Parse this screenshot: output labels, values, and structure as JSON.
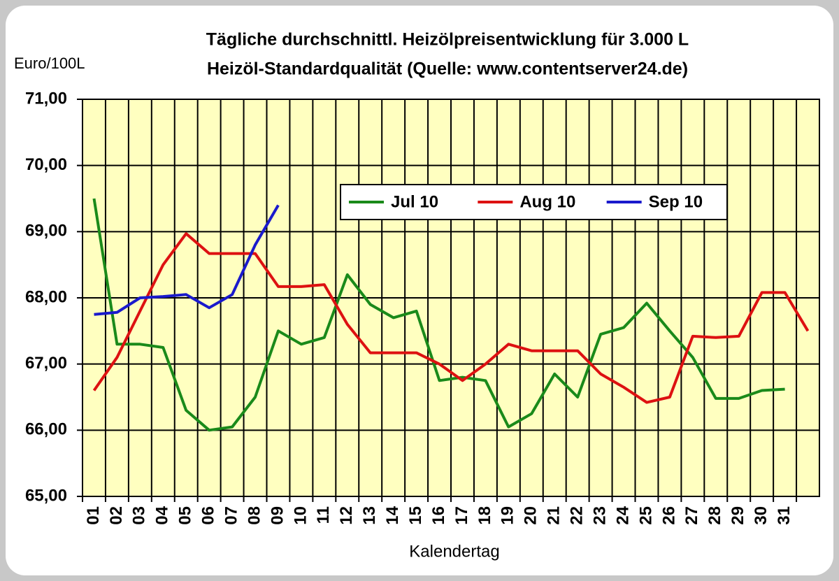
{
  "chart_data": {
    "type": "line",
    "title": "Tägliche durchschnittl. Heizölpreisentwicklung für 3.000 L",
    "subtitle": "Heizöl-Standardqualität (Quelle: www.contentserver24.de)",
    "y_label": "Euro/100L",
    "x_label": "Kalendertag",
    "categories": [
      "01",
      "02",
      "03",
      "04",
      "05",
      "06",
      "07",
      "08",
      "09",
      "10",
      "11",
      "12",
      "13",
      "14",
      "15",
      "16",
      "17",
      "18",
      "19",
      "20",
      "21",
      "22",
      "23",
      "24",
      "25",
      "26",
      "27",
      "28",
      "29",
      "30",
      "31",
      null
    ],
    "series": [
      {
        "name": "Jul 10",
        "color": "#1a8a1a",
        "values": [
          69.5,
          67.3,
          67.3,
          67.25,
          66.3,
          66.0,
          66.05,
          66.5,
          67.5,
          67.3,
          67.4,
          68.35,
          67.9,
          67.7,
          67.8,
          66.75,
          66.8,
          66.75,
          66.05,
          66.25,
          66.85,
          66.5,
          67.45,
          67.55,
          67.92,
          67.5,
          67.1,
          66.48,
          66.48,
          66.6,
          66.62,
          null
        ]
      },
      {
        "name": "Aug 10",
        "color": "#dd1111",
        "values": [
          66.6,
          67.1,
          67.8,
          68.5,
          68.97,
          68.67,
          68.67,
          68.67,
          68.17,
          68.17,
          68.2,
          67.6,
          67.17,
          67.17,
          67.17,
          67.0,
          66.75,
          67.0,
          67.3,
          67.2,
          67.2,
          67.2,
          66.85,
          66.65,
          66.42,
          66.5,
          67.42,
          67.4,
          67.42,
          68.08,
          68.08,
          67.5
        ]
      },
      {
        "name": "Sep 10",
        "color": "#1a1acc",
        "values": [
          67.75,
          67.78,
          68.0,
          68.02,
          68.05,
          67.85,
          68.05,
          68.8,
          69.4,
          null,
          null,
          null,
          null,
          null,
          null,
          null,
          null,
          null,
          null,
          null,
          null,
          null,
          null,
          null,
          null,
          null,
          null,
          null,
          null,
          null,
          null,
          null
        ]
      }
    ],
    "ylim": [
      65,
      71
    ],
    "yticks": [
      {
        "value": 65,
        "label": "65,00"
      },
      {
        "value": 66,
        "label": "66,00"
      },
      {
        "value": 67,
        "label": "67,00"
      },
      {
        "value": 68,
        "label": "68,00"
      },
      {
        "value": 69,
        "label": "69,00"
      },
      {
        "value": 70,
        "label": "70,00"
      },
      {
        "value": 71,
        "label": "71,00"
      }
    ],
    "grid": true,
    "legend": "top-right",
    "plot_background": "#ffffc0"
  }
}
